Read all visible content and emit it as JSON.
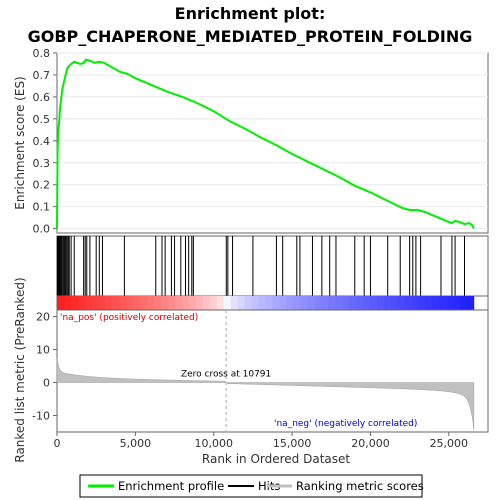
{
  "chart_data": {
    "type": "line",
    "title_line1": "Enrichment plot:",
    "title_line2": "GOBP_CHAPERONE_MEDIATED_PROTEIN_FOLDING",
    "xlabel": "Rank in Ordered Dataset",
    "ylabel_top": "Enrichment score (ES)",
    "ylabel_bottom": "Ranked list metric (PreRanked)",
    "xlim": [
      0,
      27500
    ],
    "x_ticks": [
      0,
      5000,
      10000,
      15000,
      20000,
      25000
    ],
    "x_tick_labels": [
      "0",
      "5,000",
      "10,000",
      "15,000",
      "20,000",
      "25,000"
    ],
    "es_ylim": [
      -0.02,
      0.8
    ],
    "es_ticks": [
      0.0,
      0.1,
      0.2,
      0.3,
      0.4,
      0.5,
      0.6,
      0.7,
      0.8
    ],
    "es_tick_labels": [
      "0.0",
      "0.1",
      "0.2",
      "0.3",
      "0.4",
      "0.5",
      "0.6",
      "0.7",
      "0.8"
    ],
    "metric_ylim": [
      -15,
      22
    ],
    "metric_ticks": [
      -10,
      0,
      10,
      20
    ],
    "metric_tick_labels": [
      "-10",
      "0",
      "10",
      "20"
    ],
    "zero_cross": 10791,
    "zero_cross_label": "Zero cross at 10791",
    "pos_label": "'na_pos' (positively correlated)",
    "neg_label": "'na_neg' (negatively correlated)",
    "n_genes": 26600,
    "series": [
      {
        "name": "Enrichment profile",
        "color": "#00ee00",
        "points": [
          [
            0,
            0.0
          ],
          [
            40,
            0.36
          ],
          [
            80,
            0.44
          ],
          [
            150,
            0.5
          ],
          [
            200,
            0.55
          ],
          [
            280,
            0.6
          ],
          [
            350,
            0.64
          ],
          [
            450,
            0.67
          ],
          [
            550,
            0.7
          ],
          [
            650,
            0.73
          ],
          [
            750,
            0.74
          ],
          [
            900,
            0.75
          ],
          [
            1000,
            0.755
          ],
          [
            1100,
            0.76
          ],
          [
            1300,
            0.755
          ],
          [
            1500,
            0.75
          ],
          [
            1700,
            0.755
          ],
          [
            1850,
            0.77
          ],
          [
            2100,
            0.765
          ],
          [
            2400,
            0.755
          ],
          [
            2700,
            0.76
          ],
          [
            3000,
            0.755
          ],
          [
            3500,
            0.735
          ],
          [
            4000,
            0.715
          ],
          [
            4500,
            0.705
          ],
          [
            5000,
            0.685
          ],
          [
            6000,
            0.655
          ],
          [
            7000,
            0.625
          ],
          [
            8000,
            0.6
          ],
          [
            9000,
            0.57
          ],
          [
            10000,
            0.535
          ],
          [
            11000,
            0.49
          ],
          [
            12000,
            0.455
          ],
          [
            13000,
            0.415
          ],
          [
            14000,
            0.38
          ],
          [
            15000,
            0.34
          ],
          [
            16000,
            0.305
          ],
          [
            17000,
            0.27
          ],
          [
            18000,
            0.235
          ],
          [
            19000,
            0.195
          ],
          [
            20000,
            0.165
          ],
          [
            21000,
            0.13
          ],
          [
            22000,
            0.095
          ],
          [
            22500,
            0.085
          ],
          [
            23000,
            0.085
          ],
          [
            23500,
            0.075
          ],
          [
            24000,
            0.06
          ],
          [
            24500,
            0.045
          ],
          [
            25000,
            0.03
          ],
          [
            25200,
            0.025
          ],
          [
            25400,
            0.035
          ],
          [
            25700,
            0.03
          ],
          [
            26000,
            0.02
          ],
          [
            26300,
            0.025
          ],
          [
            26500,
            0.015
          ],
          [
            26600,
            0.0
          ]
        ]
      },
      {
        "name": "Hits",
        "color": "#000000",
        "positions": [
          20,
          60,
          100,
          140,
          180,
          230,
          280,
          330,
          400,
          460,
          520,
          580,
          650,
          720,
          780,
          900,
          1100,
          1700,
          1800,
          1900,
          2100,
          2500,
          2700,
          2900,
          4300,
          6300,
          6700,
          6900,
          7300,
          7500,
          7900,
          8200,
          8400,
          8600,
          8700,
          10800,
          10900,
          11200,
          12500,
          14000,
          14400,
          15300,
          15500,
          16300,
          16900,
          17400,
          17800,
          19000,
          19600,
          20000,
          21100,
          21900,
          22500,
          22700,
          22900,
          23200,
          24500,
          25200,
          25400,
          26000
        ]
      },
      {
        "name": "Ranking metric scores",
        "color": "#c0c0c0"
      }
    ]
  },
  "legend": {
    "items": [
      "Enrichment profile",
      "Hits",
      "Ranking metric scores"
    ]
  }
}
